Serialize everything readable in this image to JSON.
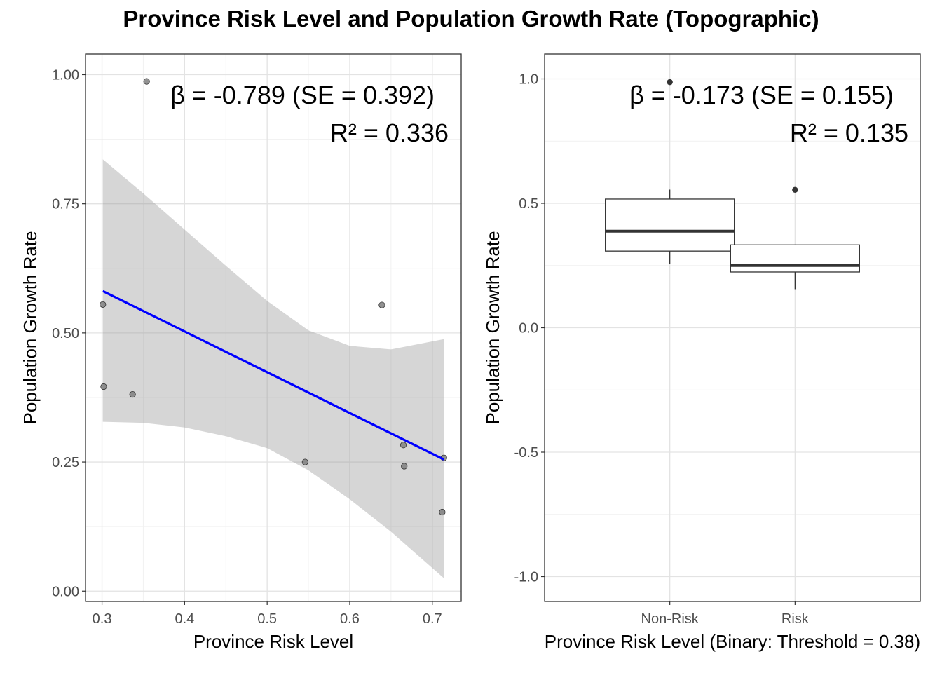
{
  "title": "Province Risk Level and Population Growth Rate (Topographic)",
  "chart_data": [
    {
      "type": "scatter",
      "xlabel": "Province Risk Level",
      "ylabel": "Population Growth Rate",
      "xlim": [
        0.28,
        0.735
      ],
      "ylim": [
        -0.02,
        1.04
      ],
      "xticks": [
        0.3,
        0.4,
        0.5,
        0.6,
        0.7
      ],
      "xtick_labels": [
        "0.3",
        "0.4",
        "0.5",
        "0.6",
        "0.7"
      ],
      "yticks": [
        0.0,
        0.25,
        0.5,
        0.75,
        1.0
      ],
      "ytick_labels": [
        "0.00",
        "0.25",
        "0.50",
        "0.75",
        "1.00"
      ],
      "grid": true,
      "points": [
        {
          "x": 0.301,
          "y": 0.555
        },
        {
          "x": 0.302,
          "y": 0.396
        },
        {
          "x": 0.337,
          "y": 0.381
        },
        {
          "x": 0.354,
          "y": 0.987
        },
        {
          "x": 0.546,
          "y": 0.25
        },
        {
          "x": 0.639,
          "y": 0.554
        },
        {
          "x": 0.665,
          "y": 0.283
        },
        {
          "x": 0.666,
          "y": 0.242
        },
        {
          "x": 0.712,
          "y": 0.153
        },
        {
          "x": 0.714,
          "y": 0.258
        }
      ],
      "regression": {
        "color": "#0000ff",
        "x": [
          0.301,
          0.714
        ],
        "y": [
          0.581,
          0.255
        ],
        "ci_band": {
          "x": [
            0.301,
            0.35,
            0.4,
            0.45,
            0.5,
            0.55,
            0.6,
            0.65,
            0.714
          ],
          "upper": [
            0.836,
            0.77,
            0.7,
            0.63,
            0.562,
            0.505,
            0.475,
            0.468,
            0.488
          ],
          "lower": [
            0.328,
            0.326,
            0.317,
            0.3,
            0.277,
            0.234,
            0.178,
            0.115,
            0.025
          ]
        }
      },
      "annotations": [
        "β = -0.789 (SE = 0.392)",
        "R² = 0.336"
      ]
    },
    {
      "type": "box",
      "xlabel": "Province Risk Level (Binary: Threshold = 0.38)",
      "ylabel": "Population Growth Rate",
      "categories": [
        "Non-Risk",
        "Risk"
      ],
      "ylim": [
        -1.1,
        1.1
      ],
      "yticks": [
        -1.0,
        -0.5,
        0.0,
        0.5,
        1.0
      ],
      "ytick_labels": [
        "-1.0",
        "-0.5",
        "0.0",
        "0.5",
        "1.0"
      ],
      "grid": true,
      "boxes": [
        {
          "category": "Non-Risk",
          "whisker_low": 0.255,
          "q1": 0.308,
          "median": 0.388,
          "q3": 0.517,
          "whisker_high": 0.555,
          "outliers": [
            0.987
          ]
        },
        {
          "category": "Risk",
          "whisker_low": 0.155,
          "q1": 0.224,
          "median": 0.25,
          "q3": 0.333,
          "whisker_high": 0.333,
          "outliers": [
            0.554
          ]
        }
      ],
      "annotations": [
        "β = -0.173 (SE = 0.155)",
        "R² = 0.135"
      ]
    }
  ]
}
